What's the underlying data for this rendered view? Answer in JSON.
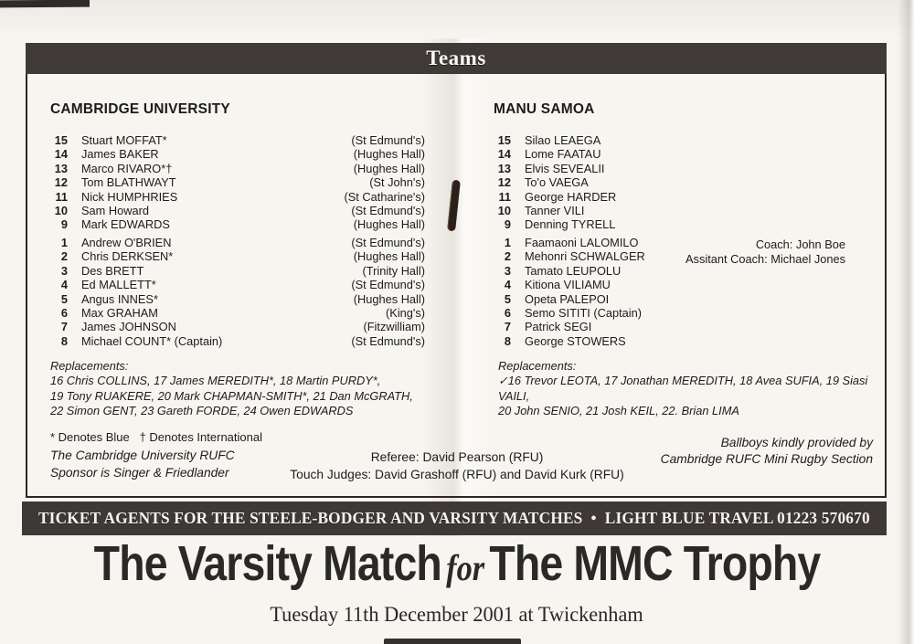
{
  "header": {
    "teams_label": "Teams"
  },
  "cambridge": {
    "name": "CAMBRIDGE UNIVERSITY",
    "backs": [
      {
        "num": "15",
        "name": "Stuart MOFFAT*",
        "college": "(St Edmund's)"
      },
      {
        "num": "14",
        "name": "James BAKER",
        "college": "(Hughes Hall)"
      },
      {
        "num": "13",
        "name": "Marco RIVARO*†",
        "college": "(Hughes Hall)"
      },
      {
        "num": "12",
        "name": "Tom BLATHWAYT",
        "college": "(St John's)"
      },
      {
        "num": "11",
        "name": "Nick HUMPHRIES",
        "college": "(St Catharine's)"
      },
      {
        "num": "10",
        "name": "Sam Howard",
        "college": "(St Edmund's)"
      },
      {
        "num": "9",
        "name": "Mark EDWARDS",
        "college": "(Hughes Hall)"
      }
    ],
    "forwards": [
      {
        "num": "1",
        "name": "Andrew O'BRIEN",
        "college": "(St Edmund's)"
      },
      {
        "num": "2",
        "name": "Chris DERKSEN*",
        "college": "(Hughes Hall)"
      },
      {
        "num": "3",
        "name": "Des BRETT",
        "college": "(Trinity Hall)"
      },
      {
        "num": "4",
        "name": "Ed MALLETT*",
        "college": "(St Edmund's)"
      },
      {
        "num": "5",
        "name": "Angus INNES*",
        "college": "(Hughes Hall)"
      },
      {
        "num": "6",
        "name": "Max GRAHAM",
        "college": "(King's)"
      },
      {
        "num": "7",
        "name": "James JOHNSON",
        "college": "(Fitzwilliam)"
      },
      {
        "num": "8",
        "name": "Michael COUNT* (Captain)",
        "college": "(St Edmund's)"
      }
    ],
    "replacements_label": "Replacements:",
    "replacements_lines": [
      "16 Chris COLLINS, 17 James MEREDITH*, 18 Martin PURDY*,",
      "19 Tony RUAKERE, 20 Mark CHAPMAN-SMITH*, 21 Dan McGRATH,",
      "22 Simon GENT, 23 Gareth FORDE, 24 Owen EDWARDS"
    ],
    "denotes": "* Denotes Blue   † Denotes International",
    "sponsor_lines": [
      "The Cambridge University RUFC",
      "Sponsor is Singer & Friedlander"
    ]
  },
  "samoa": {
    "name": "MANU SAMOA",
    "backs": [
      {
        "num": "15",
        "name": "Silao LEAEGA"
      },
      {
        "num": "14",
        "name": "Lome FAATAU"
      },
      {
        "num": "13",
        "name": "Elvis SEVEALII"
      },
      {
        "num": "12",
        "name": "To'o VAEGA"
      },
      {
        "num": "11",
        "name": "George HARDER"
      },
      {
        "num": "10",
        "name": "Tanner VILI"
      },
      {
        "num": "9",
        "name": "Denning TYRELL"
      }
    ],
    "forwards": [
      {
        "num": "1",
        "name": "Faamaoni LALOMILO"
      },
      {
        "num": "2",
        "name": "Mehonri SCHWALGER"
      },
      {
        "num": "3",
        "name": "Tamato LEUPOLU"
      },
      {
        "num": "4",
        "name": "Kitiona VILIAMU"
      },
      {
        "num": "5",
        "name": "Opeta PALEPOI"
      },
      {
        "num": "6",
        "name": "Semo SITITI (Captain)"
      },
      {
        "num": "7",
        "name": "Patrick SEGI"
      },
      {
        "num": "8",
        "name": "George STOWERS"
      }
    ],
    "coach": "Coach: John Boe",
    "assistant_coach": "Assitant Coach: Michael Jones",
    "replacements_label": "Replacements:",
    "replacements_lines": [
      "✓16 Trevor LEOTA, 17 Jonathan MEREDITH, 18 Avea SUFIA, 19 Siasi VAILI,",
      "20 John SENIO, 21 Josh KEIL, 22. Brian LIMA"
    ],
    "ballboys_lines": [
      "Ballboys kindly provided by",
      "Cambridge RUFC Mini Rugby Section"
    ]
  },
  "officials": {
    "referee": "Referee: David Pearson (RFU)",
    "touch_judges": "Touch Judges: David Grashoff (RFU) and David Kurk (RFU)"
  },
  "banner": "TICKET AGENTS FOR THE STEELE-BODGER AND VARSITY MATCHES  •  LIGHT BLUE TRAVEL 01223 570670",
  "footer": {
    "title_part1": "The Varsity Match",
    "title_for": "for",
    "title_part2": "The MMC Trophy",
    "subtitle": "Tuesday 11th December 2001 at Twickenham"
  },
  "colors": {
    "bar": "#3f3a37",
    "paper": "#f7f5f0",
    "ink": "#1d1c1b"
  }
}
